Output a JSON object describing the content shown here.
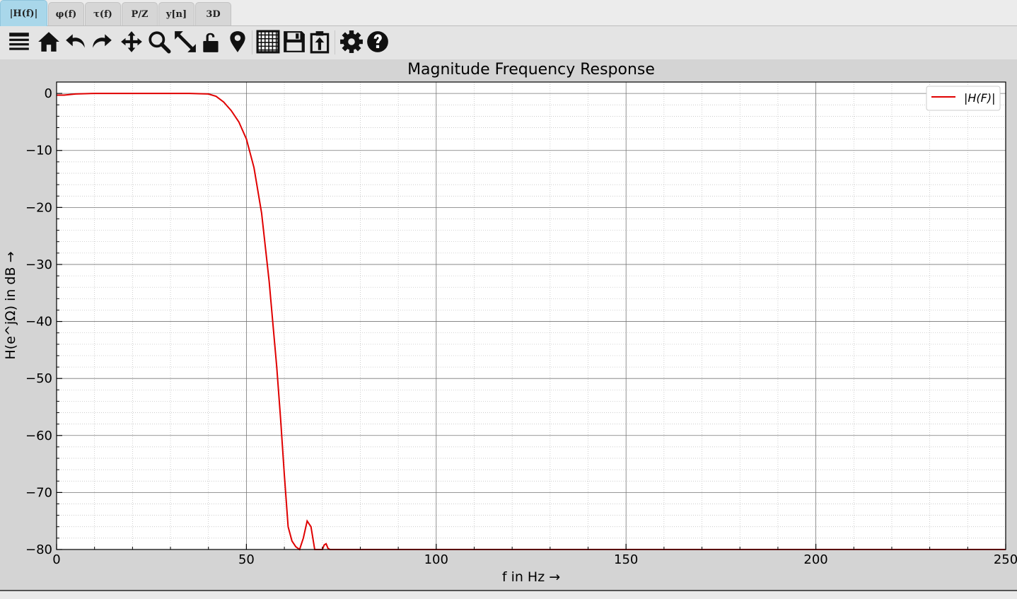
{
  "tabs": [
    {
      "label": "|H(f)|",
      "active": true
    },
    {
      "label": "φ(f)",
      "active": false
    },
    {
      "label": "τ(f)",
      "active": false
    },
    {
      "label": "P/Z",
      "active": false
    },
    {
      "label": "y[n]",
      "active": false
    },
    {
      "label": "3D",
      "active": false
    }
  ],
  "toolbar_icons": [
    "menu-icon",
    "home-icon",
    "undo-icon",
    "redo-icon",
    "pan-icon",
    "zoom-icon",
    "zoom-full-icon",
    "lock-icon",
    "marker-icon",
    "grid-icon",
    "save-icon",
    "copy-icon",
    "settings-icon",
    "help-icon"
  ],
  "chart_data": {
    "type": "line",
    "title": "Magnitude Frequency Response",
    "xlabel": "f in Hz →",
    "ylabel": "H(e^jΩ) in dB →",
    "xlim": [
      0,
      250
    ],
    "ylim": [
      -80,
      2
    ],
    "xticks": [
      "0",
      "50",
      "100",
      "150",
      "200",
      "250"
    ],
    "yticks": [
      "0",
      "−10",
      "−20",
      "−30",
      "−40",
      "−50",
      "−60",
      "−70",
      "−80"
    ],
    "grid": true,
    "legend_position": "top-right",
    "line_color": "#e00000",
    "series": [
      {
        "name": "|H(F)|",
        "x": [
          0,
          2,
          5,
          10,
          15,
          20,
          25,
          30,
          35,
          40,
          42,
          44,
          46,
          48,
          50,
          52,
          54,
          56,
          58,
          59,
          60,
          61,
          62,
          63,
          64,
          65,
          66,
          67,
          68,
          69,
          70,
          70.5,
          71,
          71.5,
          72,
          75,
          100,
          150,
          200,
          250
        ],
        "y": [
          -0.3,
          -0.3,
          -0.1,
          0,
          0,
          0,
          0,
          0,
          0,
          -0.1,
          -0.5,
          -1.5,
          -3,
          -5,
          -8,
          -13,
          -21,
          -33,
          -48,
          -57,
          -67,
          -76,
          -78.5,
          -79.5,
          -80,
          -78,
          -75,
          -76,
          -80,
          -80,
          -80,
          -79.2,
          -79,
          -79.8,
          -80,
          -80,
          -80,
          -80,
          -80,
          -80
        ]
      }
    ]
  }
}
